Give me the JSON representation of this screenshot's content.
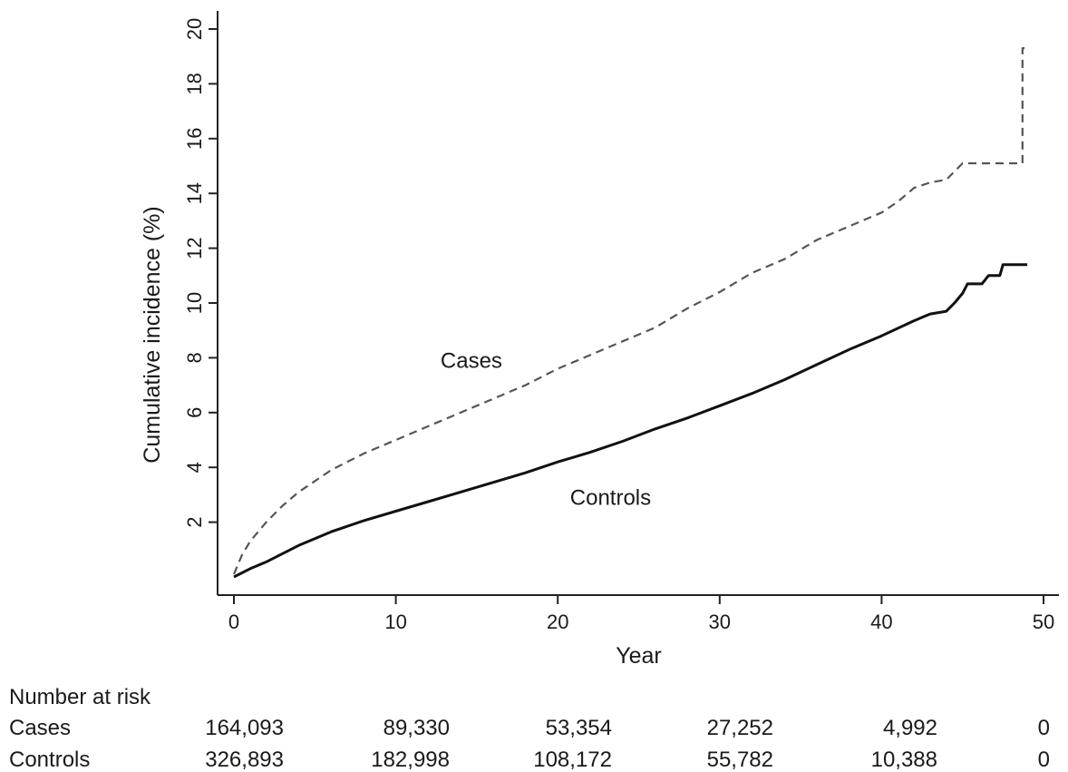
{
  "chart_data": {
    "type": "line",
    "title": "",
    "xlabel": "Year",
    "ylabel": "Cumulative incidence (%)",
    "xlim": [
      0,
      50
    ],
    "ylim": [
      0,
      20
    ],
    "x_ticks": [
      "0",
      "10",
      "20",
      "30",
      "40",
      "50"
    ],
    "y_ticks": [
      "2",
      "4",
      "6",
      "8",
      "10",
      "12",
      "14",
      "16",
      "18",
      "20"
    ],
    "grid": false,
    "series": [
      {
        "name": "Cases",
        "line_style": "dashed",
        "color": "#555555",
        "x": [
          0,
          0.5,
          1,
          2,
          3,
          4,
          5,
          6,
          8,
          10,
          12,
          14,
          16,
          18,
          20,
          22,
          24,
          26,
          28,
          30,
          32,
          34,
          36,
          38,
          40,
          41,
          42,
          43,
          44,
          45,
          46,
          47,
          48,
          48.7,
          48.7,
          49
        ],
        "values": [
          0.1,
          0.8,
          1.3,
          2.0,
          2.6,
          3.1,
          3.5,
          3.9,
          4.5,
          5.0,
          5.5,
          6.0,
          6.5,
          7.0,
          7.6,
          8.1,
          8.6,
          9.1,
          9.8,
          10.4,
          11.1,
          11.6,
          12.3,
          12.8,
          13.3,
          13.7,
          14.2,
          14.4,
          14.5,
          15.1,
          15.1,
          15.1,
          15.1,
          15.1,
          19.3,
          19.3
        ]
      },
      {
        "name": "Controls",
        "line_style": "solid",
        "color": "#111111",
        "x": [
          0,
          1,
          2,
          3,
          4,
          5,
          6,
          8,
          10,
          12,
          14,
          16,
          18,
          20,
          22,
          24,
          26,
          28,
          30,
          32,
          34,
          36,
          38,
          40,
          42,
          43,
          44,
          44.5,
          45,
          45.3,
          46.2,
          46.6,
          47.3,
          47.5,
          48,
          49
        ],
        "values": [
          0.0,
          0.3,
          0.55,
          0.85,
          1.15,
          1.4,
          1.65,
          2.05,
          2.4,
          2.75,
          3.1,
          3.45,
          3.8,
          4.2,
          4.55,
          4.95,
          5.4,
          5.8,
          6.25,
          6.7,
          7.2,
          7.75,
          8.3,
          8.8,
          9.35,
          9.6,
          9.7,
          10.0,
          10.35,
          10.7,
          10.7,
          11.0,
          11.0,
          11.4,
          11.4,
          11.4
        ]
      }
    ],
    "annotations": [
      {
        "text": "Cases",
        "x": 15,
        "y": 7.9
      },
      {
        "text": "Controls",
        "x": 23,
        "y": 2.9
      }
    ],
    "risk_table": {
      "title": "Number at risk",
      "rows": [
        {
          "label": "Cases",
          "values": [
            "164,093",
            "89,330",
            "53,354",
            "27,252",
            "4,992",
            "0"
          ]
        },
        {
          "label": "Controls",
          "values": [
            "326,893",
            "182,998",
            "108,172",
            "55,782",
            "10,388",
            "0"
          ]
        }
      ]
    }
  }
}
